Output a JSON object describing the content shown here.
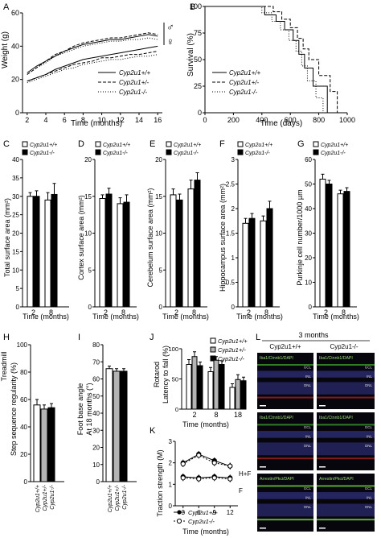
{
  "panels": {
    "A": "A",
    "B": "B",
    "C": "C",
    "D": "D",
    "E": "E",
    "F": "F",
    "G": "G",
    "H": "H",
    "I": "I",
    "J": "J",
    "K": "K",
    "L": "L"
  },
  "legend": {
    "wt": "Cyp2u1+/+",
    "het": "Cyp2u1+/-",
    "ko": "Cyp2u1-/-",
    "wt_short": "Cyp2u1+/+",
    "ko_short": "Cyp2u1-/-"
  },
  "labels": {
    "weight": "Weight (g)",
    "time_months": "Time (months)",
    "time_days": "Time (days)",
    "survival": "Survival (%)",
    "male": "♂",
    "female": "♀",
    "total_area": "Total surface area (mm²)",
    "cortex_area": "Cortex surface area (mm²)",
    "cerebelum_area": "Cerebelum surface area (mm²)",
    "hippocampus_area": "Hippocampus surface area (mm²)",
    "purkinje": "Purkinje cell number/1000 µm",
    "treadmill_1": "Treadmill",
    "treadmill_2": "Step sequence regularity (%)",
    "foot_1": "Foot base angle",
    "foot_2": "At 18 months (°)",
    "rotarod_1": "Rotarod",
    "rotarod_2": "Latency to fall (%)",
    "traction": "Traction strength (M)",
    "hf": "H+F",
    "f": "F",
    "three_months": "3 months",
    "geno_wt": "Cyp2u1+/+",
    "geno_ko": "Cyp2u1-/-"
  },
  "micro": {
    "row1": "Iba1/Ctnnb1/DAPI",
    "row2": "Iba1/Ctnnb1/DAPI",
    "row3": "Arrestin/Pkci/DAPI",
    "layers": [
      "GCL",
      "INL",
      "ONL"
    ]
  },
  "colors": {
    "wt": "#ffffff",
    "het": "#b4b4b4",
    "ko": "#000000"
  },
  "chart_data": [
    {
      "id": "A",
      "type": "line",
      "xlabel": "Time (months)",
      "ylabel": "Weight (g)",
      "xlim": [
        1.5,
        16.5
      ],
      "ylim": [
        0,
        60
      ],
      "xticks": [
        2,
        4,
        6,
        8,
        10,
        12,
        14,
        16
      ],
      "yticks": [
        0,
        20,
        40,
        60
      ],
      "series": [
        {
          "name": "Cyp2u1+/+ male",
          "x": [
            2,
            3,
            4,
            5,
            6,
            7,
            8,
            9,
            10,
            11,
            12,
            13,
            14,
            15,
            16
          ],
          "y": [
            24,
            28,
            31,
            34,
            37,
            39,
            41,
            42,
            43,
            44,
            44,
            45,
            46,
            47,
            46
          ]
        },
        {
          "name": "Cyp2u1+/- male",
          "x": [
            2,
            3,
            4,
            5,
            6,
            7,
            8,
            9,
            10,
            11,
            12,
            13,
            14,
            15,
            16
          ],
          "y": [
            23,
            27,
            31,
            35,
            37,
            40,
            42,
            43,
            44,
            45,
            45,
            46,
            47,
            48,
            47
          ]
        },
        {
          "name": "Cyp2u1-/- male",
          "x": [
            2,
            3,
            4,
            5,
            6,
            7,
            8,
            9,
            10,
            11,
            12,
            13,
            14,
            15,
            16
          ],
          "y": [
            23,
            27,
            30,
            34,
            36,
            38,
            40,
            41,
            42,
            43,
            43,
            44,
            44,
            45,
            44
          ]
        },
        {
          "name": "Cyp2u1+/+ female",
          "x": [
            2,
            3,
            4,
            5,
            6,
            7,
            8,
            9,
            10,
            11,
            12,
            13,
            14,
            15,
            16
          ],
          "y": [
            19,
            21,
            23,
            26,
            28,
            30,
            32,
            33,
            34,
            35,
            36,
            37,
            38,
            39,
            40
          ]
        },
        {
          "name": "Cyp2u1+/- female",
          "x": [
            2,
            3,
            4,
            5,
            6,
            7,
            8,
            9,
            10,
            11,
            12,
            13,
            14,
            15,
            16
          ],
          "y": [
            19,
            21,
            23,
            25,
            27,
            29,
            30,
            31,
            33,
            33,
            34,
            35,
            35,
            36,
            37
          ]
        },
        {
          "name": "Cyp2u1-/- female",
          "x": [
            2,
            3,
            4,
            5,
            6,
            7,
            8,
            9,
            10,
            11,
            12,
            13,
            14,
            15,
            16
          ],
          "y": [
            18,
            20,
            22,
            24,
            26,
            27,
            29,
            30,
            31,
            32,
            32,
            33,
            34,
            34,
            35
          ]
        }
      ]
    },
    {
      "id": "B",
      "type": "line",
      "xlabel": "Time (days)",
      "ylabel": "Survival (%)",
      "xlim": [
        0,
        1000
      ],
      "ylim": [
        0,
        100
      ],
      "xticks": [
        0,
        200,
        400,
        600,
        800,
        1000
      ],
      "yticks": [
        0,
        25,
        50,
        75,
        100
      ],
      "series": [
        {
          "name": "Cyp2u1+/+",
          "x": [
            0,
            250,
            420,
            500,
            560,
            620,
            660,
            700,
            760,
            820,
            860
          ],
          "y": [
            100,
            100,
            92,
            86,
            78,
            68,
            55,
            42,
            25,
            25,
            0
          ]
        },
        {
          "name": "Cyp2u1+/-",
          "x": [
            0,
            300,
            480,
            540,
            600,
            650,
            690,
            730,
            800,
            880,
            930
          ],
          "y": [
            100,
            100,
            95,
            88,
            80,
            70,
            60,
            50,
            35,
            20,
            0
          ]
        },
        {
          "name": "Cyp2u1-/-",
          "x": [
            0,
            230,
            400,
            470,
            530,
            590,
            640,
            680,
            720,
            780,
            830
          ],
          "y": [
            100,
            100,
            94,
            86,
            78,
            68,
            58,
            44,
            30,
            14,
            0
          ]
        }
      ]
    },
    {
      "id": "C",
      "type": "bar",
      "ylabel": "Total surface area (mm²)",
      "xlabel": "Time (months)",
      "categories": [
        "2",
        "8"
      ],
      "ylim": [
        0,
        40
      ],
      "yticks": [
        0,
        5,
        10,
        15,
        20,
        25,
        30,
        35,
        40
      ],
      "series": [
        {
          "name": "Cyp2u1+/+",
          "values": [
            30,
            29
          ],
          "errors": [
            1,
            2
          ]
        },
        {
          "name": "Cyp2u1-/-",
          "values": [
            30,
            30.5
          ],
          "errors": [
            1.5,
            3
          ]
        }
      ]
    },
    {
      "id": "D",
      "type": "bar",
      "ylabel": "Cortex surface area (mm²)",
      "xlabel": "Time (months)",
      "categories": [
        "2",
        "8"
      ],
      "ylim": [
        0,
        20
      ],
      "yticks": [
        0,
        5,
        10,
        15,
        20
      ],
      "series": [
        {
          "name": "Cyp2u1+/+",
          "values": [
            14.7,
            14
          ],
          "errors": [
            0.5,
            0.8
          ]
        },
        {
          "name": "Cyp2u1-/-",
          "values": [
            15.3,
            14.2
          ],
          "errors": [
            0.8,
            1
          ]
        }
      ]
    },
    {
      "id": "E",
      "type": "bar",
      "ylabel": "Cerebelum surface area (mm²)",
      "xlabel": "Time (months)",
      "categories": [
        "2",
        "8"
      ],
      "ylim": [
        0,
        20
      ],
      "yticks": [
        0,
        5,
        10,
        15,
        20
      ],
      "series": [
        {
          "name": "Cyp2u1+/+",
          "values": [
            15.2,
            16
          ],
          "errors": [
            0.8,
            1.2
          ]
        },
        {
          "name": "Cyp2u1-/-",
          "values": [
            14.5,
            17.2
          ],
          "errors": [
            0.8,
            1
          ]
        }
      ]
    },
    {
      "id": "F",
      "type": "bar",
      "ylabel": "Hippocampus surface area (mm²)",
      "xlabel": "Time (months)",
      "categories": [
        "2",
        "8"
      ],
      "ylim": [
        0,
        3
      ],
      "yticks": [
        0,
        0.5,
        1,
        1.5,
        2,
        2.5,
        3
      ],
      "series": [
        {
          "name": "Cyp2u1+/+",
          "values": [
            1.7,
            1.75
          ],
          "errors": [
            0.1,
            0.1
          ]
        },
        {
          "name": "Cyp2u1-/-",
          "values": [
            1.8,
            2
          ],
          "errors": [
            0.1,
            0.15
          ]
        }
      ]
    },
    {
      "id": "G",
      "type": "bar",
      "ylabel": "Purkinje cell number/1000 µm",
      "xlabel": "Time (months)",
      "categories": [
        "2",
        "8"
      ],
      "ylim": [
        0,
        60
      ],
      "yticks": [
        0,
        10,
        20,
        30,
        40,
        50,
        60
      ],
      "series": [
        {
          "name": "Cyp2u1+/+",
          "values": [
            52,
            46
          ],
          "errors": [
            2,
            1.5
          ]
        },
        {
          "name": "Cyp2u1-/-",
          "values": [
            50,
            47
          ],
          "errors": [
            1.5,
            1.5
          ]
        }
      ]
    },
    {
      "id": "H",
      "type": "bar",
      "ylabel": "Step sequence regularity (%)",
      "categories": [
        "Cyp2u1+/+",
        "Cyp2u1+/-",
        "Cyp2u1-/-"
      ],
      "ylim": [
        0,
        100
      ],
      "yticks": [
        0,
        20,
        40,
        60,
        80,
        100
      ],
      "values": [
        56,
        53,
        54
      ],
      "errors": [
        4,
        3,
        3
      ]
    },
    {
      "id": "I",
      "type": "bar",
      "ylabel": "Foot base angle At 18 months (°)",
      "categories": [
        "Cyp2u1+/+",
        "Cyp2u1+/-",
        "Cyp2u1-/-"
      ],
      "ylim": [
        0,
        80
      ],
      "yticks": [
        0,
        10,
        20,
        30,
        40,
        50,
        60,
        70,
        80
      ],
      "values": [
        66,
        64.5,
        64.5
      ],
      "errors": [
        1.5,
        1.5,
        1.5
      ]
    },
    {
      "id": "J",
      "type": "bar",
      "ylabel": "Rotarod Latency to fall (%)",
      "xlabel": "Time (months)",
      "categories": [
        "2",
        "8",
        "18"
      ],
      "ylim": [
        0,
        100
      ],
      "yticks": [
        0,
        50,
        100
      ],
      "series": [
        {
          "name": "Cyp2u1+/+",
          "values": [
            74,
            62,
            36
          ],
          "errors": [
            8,
            7,
            6
          ]
        },
        {
          "name": "Cyp2u1+/-",
          "values": [
            87,
            81,
            49
          ],
          "errors": [
            8,
            6,
            8
          ]
        },
        {
          "name": "Cyp2u1-/-",
          "values": [
            72,
            74,
            47
          ],
          "errors": [
            6,
            6,
            6
          ]
        }
      ]
    },
    {
      "id": "K",
      "type": "line",
      "ylabel": "Traction strength (M)",
      "xlabel": "Time (months)",
      "xlim": [
        1.5,
        13.5
      ],
      "ylim": [
        0,
        3
      ],
      "xticks": [
        3,
        6,
        9,
        12
      ],
      "yticks": [
        0,
        1,
        2,
        3
      ],
      "series": [
        {
          "name": "Cyp2u1+/+ H+F",
          "x": [
            3,
            6,
            9,
            12
          ],
          "y": [
            2.0,
            2.4,
            2.1,
            1.85
          ]
        },
        {
          "name": "Cyp2u1-/- H+F",
          "x": [
            3,
            6,
            9,
            12
          ],
          "y": [
            1.95,
            2.35,
            2.0,
            1.85
          ]
        },
        {
          "name": "Cyp2u1+/+ F",
          "x": [
            3,
            6,
            9,
            12
          ],
          "y": [
            1.35,
            1.3,
            1.35,
            1.3
          ]
        },
        {
          "name": "Cyp2u1-/- F",
          "x": [
            3,
            6,
            9,
            12
          ],
          "y": [
            1.3,
            1.25,
            1.3,
            1.25
          ]
        }
      ]
    }
  ]
}
